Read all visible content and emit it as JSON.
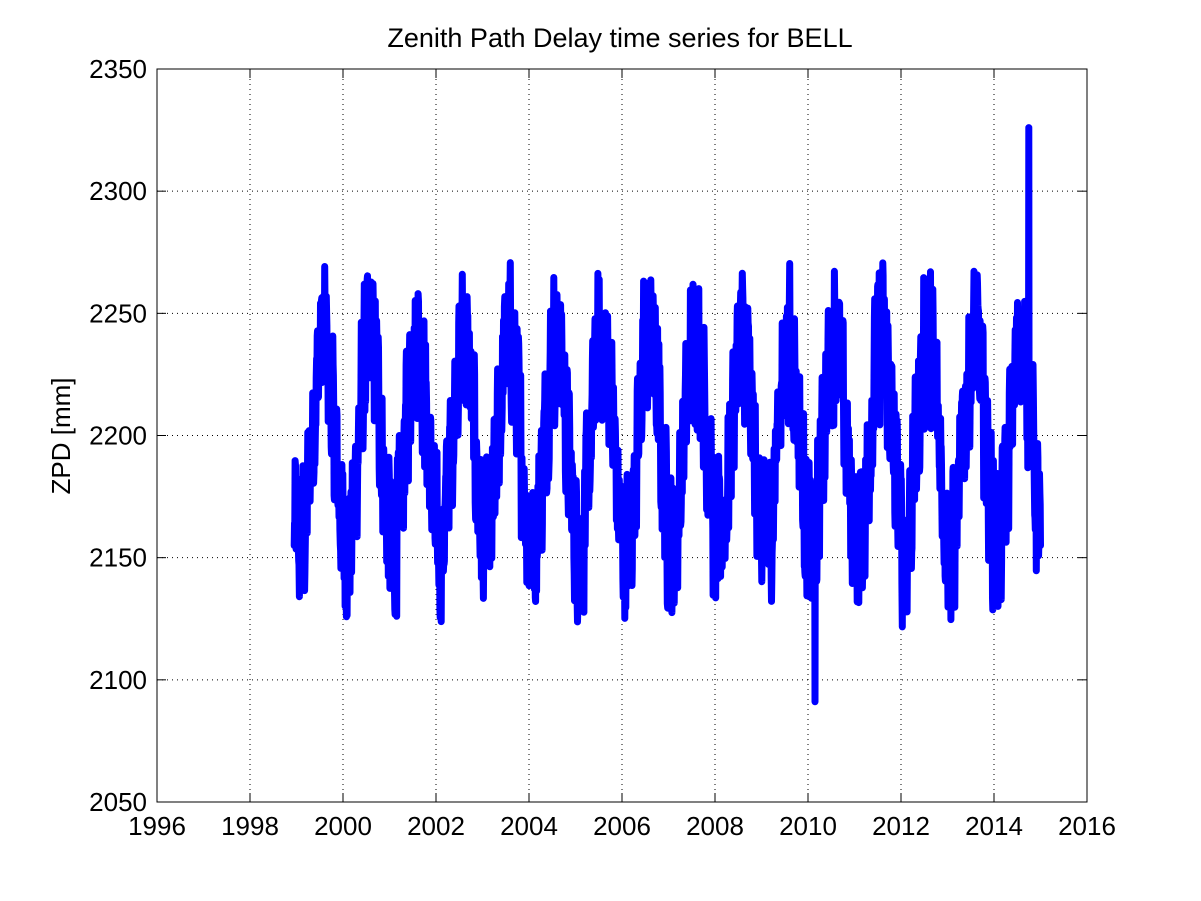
{
  "chart_data": {
    "type": "line",
    "title": "Zenith Path Delay time series for BELL",
    "xlabel": "",
    "ylabel": "ZPD [mm]",
    "xlim": [
      1996,
      2016
    ],
    "ylim": [
      2050,
      2350
    ],
    "xticks": [
      "1996",
      "1998",
      "2000",
      "2002",
      "2004",
      "2006",
      "2008",
      "2010",
      "2012",
      "2014",
      "2016"
    ],
    "yticks": [
      "2050",
      "2100",
      "2150",
      "2200",
      "2250",
      "2300",
      "2350"
    ],
    "grid": true,
    "legend": "none",
    "colors": {
      "series": "#0000ff",
      "axis": "#000000",
      "grid": "#000000"
    },
    "series": [
      {
        "x_start": 1998.95,
        "x_end": 2015.0,
        "mean": 2197,
        "seasonal_amplitude": 42,
        "seasonal_peak_fraction": 0.58,
        "noise_amplitude": 38,
        "peak_max": 2326,
        "peak_max_x": 2014.75,
        "trough_min": 2091,
        "trough_min_x": 2010.15,
        "start_value": 2155,
        "end_value": 2155
      }
    ]
  }
}
